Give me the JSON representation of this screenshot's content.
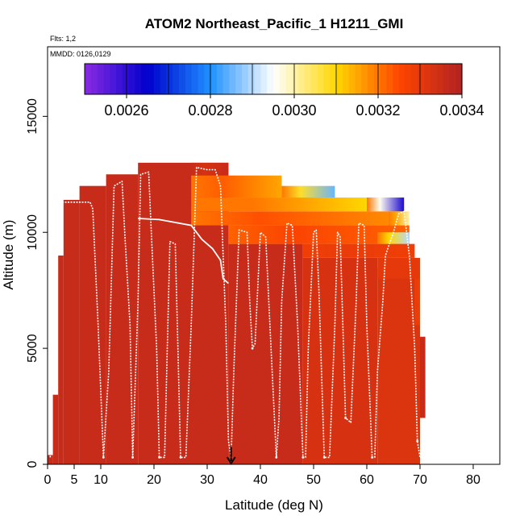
{
  "chart_data": {
    "type": "heatmap",
    "title": "ATOM2 Northeast_Pacific_1 H1211_GMI",
    "annotations": [
      "Flts: 1,2",
      "MMDD: 0126,0129"
    ],
    "xlabel": "Latitude (deg N)",
    "ylabel": "Altitude (m)",
    "xlim": [
      0,
      85
    ],
    "ylim": [
      0,
      18000
    ],
    "x_ticks": [
      0,
      5,
      10,
      20,
      30,
      40,
      50,
      60,
      70,
      80
    ],
    "y_ticks": [
      0,
      5000,
      10000,
      15000
    ],
    "colorbar": {
      "range": [
        0.0025,
        0.0034
      ],
      "tick_values": [
        0.0026,
        0.0028,
        0.003,
        0.0032,
        0.0034
      ],
      "tick_labels": [
        "0.0026",
        "0.0028",
        "0.0030",
        "0.0032",
        "0.0034"
      ],
      "colors": [
        "#8a2be2",
        "#0000cd",
        "#1e90ff",
        "#ffffff",
        "#ffd700",
        "#ff4500",
        "#b22222"
      ]
    },
    "marker_latitude": 34.5,
    "grid": false,
    "legend": "colorbar-top",
    "curtain_segments": [
      {
        "lat": [
          0,
          1
        ],
        "alt": [
          0,
          400
        ],
        "value": 0.00336
      },
      {
        "lat": [
          1,
          2
        ],
        "alt": [
          0,
          3000
        ],
        "value": 0.00336
      },
      {
        "lat": [
          2,
          3
        ],
        "alt": [
          0,
          9000
        ],
        "value": 0.00336
      },
      {
        "lat": [
          3,
          6
        ],
        "alt": [
          0,
          11400
        ],
        "value": 0.00336
      },
      {
        "lat": [
          6,
          11
        ],
        "alt": [
          0,
          12000
        ],
        "value": 0.00336
      },
      {
        "lat": [
          11,
          17
        ],
        "alt": [
          0,
          12500
        ],
        "value": 0.00336
      },
      {
        "lat": [
          17,
          34
        ],
        "alt": [
          0,
          13000
        ],
        "value": 0.00336
      },
      {
        "lat": [
          34,
          48
        ],
        "alt": [
          0,
          9500
        ],
        "value": 0.00336
      },
      {
        "lat": [
          48,
          62
        ],
        "alt": [
          0,
          8900
        ],
        "value": 0.00333
      },
      {
        "lat": [
          62,
          70
        ],
        "alt": [
          0,
          8500
        ],
        "value": 0.00332
      },
      {
        "lat": [
          70,
          71
        ],
        "alt": [
          2000,
          5500
        ],
        "value": 0.00336
      }
    ],
    "upper_layers": [
      {
        "lat": [
          27,
          34
        ],
        "alt": [
          12450,
          13000
        ],
        "value": 0.00336
      },
      {
        "lat": [
          27,
          44
        ],
        "alt": [
          11500,
          12450
        ],
        "value": 0.00315
      },
      {
        "lat": [
          44,
          54
        ],
        "alt": [
          11500,
          12000
        ],
        "value": 0.00285
      },
      {
        "lat": [
          27,
          60
        ],
        "alt": [
          10900,
          11500
        ],
        "value": 0.0031
      },
      {
        "lat": [
          60,
          67
        ],
        "alt": [
          10900,
          11500
        ],
        "value": 0.00262
      },
      {
        "lat": [
          27,
          64
        ],
        "alt": [
          10300,
          10900
        ],
        "value": 0.00318
      },
      {
        "lat": [
          64,
          68
        ],
        "alt": [
          10300,
          10900
        ],
        "value": 0.003
      },
      {
        "lat": [
          34,
          68
        ],
        "alt": [
          9500,
          10300
        ],
        "value": 0.00322
      },
      {
        "lat": [
          62,
          68
        ],
        "alt": [
          9500,
          10000
        ],
        "value": 0.0029
      },
      {
        "lat": [
          48,
          69
        ],
        "alt": [
          8900,
          9500
        ],
        "value": 0.00328
      },
      {
        "lat": [
          62,
          70
        ],
        "alt": [
          8000,
          8900
        ],
        "value": 0.0033
      },
      {
        "lat": [
          69,
          70
        ],
        "alt": [
          6000,
          8000
        ],
        "value": 0.00328
      }
    ],
    "flight_track": [
      [
        0.5,
        300
      ],
      [
        1.0,
        4000
      ],
      [
        1.5,
        8500
      ],
      [
        2.5,
        11300
      ],
      [
        8.0,
        11300
      ],
      [
        8.5,
        11000
      ],
      [
        9.5,
        6000
      ],
      [
        10.5,
        300
      ],
      [
        11.5,
        4000
      ],
      [
        12.5,
        12000
      ],
      [
        14.0,
        12200
      ],
      [
        14.5,
        10000
      ],
      [
        15.5,
        6000
      ],
      [
        16.0,
        300
      ],
      [
        17.0,
        7000
      ],
      [
        17.5,
        12500
      ],
      [
        19.0,
        12600
      ],
      [
        19.5,
        10000
      ],
      [
        20.5,
        5000
      ],
      [
        21.0,
        300
      ],
      [
        22.0,
        300
      ],
      [
        22.5,
        5000
      ],
      [
        23.0,
        9600
      ],
      [
        24.0,
        9500
      ],
      [
        24.5,
        5000
      ],
      [
        25.0,
        300
      ],
      [
        26.0,
        300
      ],
      [
        27.0,
        6000
      ],
      [
        28.0,
        12800
      ],
      [
        30.0,
        12700
      ],
      [
        31.5,
        12700
      ],
      [
        32.5,
        12000
      ],
      [
        33.0,
        9000
      ],
      [
        33.5,
        6000
      ],
      [
        34.0,
        1000
      ],
      [
        34.5,
        300
      ],
      [
        35.0,
        4000
      ],
      [
        36.0,
        10100
      ],
      [
        37.5,
        10000
      ],
      [
        38.0,
        7000
      ],
      [
        38.5,
        5000
      ],
      [
        39.0,
        5200
      ],
      [
        40.0,
        10000
      ],
      [
        41.0,
        9800
      ],
      [
        42.0,
        5000
      ],
      [
        43.0,
        300
      ],
      [
        43.5,
        2000
      ],
      [
        44.0,
        7000
      ],
      [
        45.0,
        10400
      ],
      [
        46.0,
        10300
      ],
      [
        47.0,
        6000
      ],
      [
        48.0,
        300
      ],
      [
        48.5,
        300
      ],
      [
        49.0,
        5000
      ],
      [
        50.0,
        10000
      ],
      [
        50.5,
        10100
      ],
      [
        51.0,
        7500
      ],
      [
        52.0,
        300
      ],
      [
        53.0,
        300
      ],
      [
        54.0,
        6000
      ],
      [
        54.5,
        10000
      ],
      [
        55.0,
        9800
      ],
      [
        55.5,
        6000
      ],
      [
        56.0,
        2000
      ],
      [
        57.0,
        1800
      ],
      [
        58.0,
        7000
      ],
      [
        58.5,
        10400
      ],
      [
        59.5,
        10300
      ],
      [
        60.0,
        6000
      ],
      [
        61.0,
        300
      ],
      [
        61.5,
        300
      ],
      [
        62.0,
        4000
      ],
      [
        63.0,
        7000
      ],
      [
        63.5,
        9000
      ],
      [
        65.0,
        10000
      ],
      [
        66.0,
        10800
      ],
      [
        67.0,
        10900
      ],
      [
        68.0,
        9000
      ],
      [
        69.0,
        5000
      ],
      [
        69.5,
        1000
      ],
      [
        70.0,
        300
      ]
    ],
    "flight_track_dotted": [
      [
        1.5,
        8500
      ],
      [
        10.5,
        300
      ],
      [
        16.0,
        300
      ],
      [
        21.0,
        300
      ],
      [
        25.0,
        300
      ],
      [
        34.5,
        300
      ],
      [
        38.5,
        5000
      ],
      [
        43.0,
        300
      ],
      [
        48.0,
        300
      ],
      [
        52.0,
        300
      ],
      [
        56.0,
        2000
      ],
      [
        61.0,
        300
      ],
      [
        69.5,
        1000
      ]
    ],
    "upper_track": [
      [
        17.0,
        10600
      ],
      [
        21.0,
        10550
      ],
      [
        27.0,
        10300
      ],
      [
        29.0,
        9700
      ],
      [
        31.0,
        9300
      ],
      [
        32.5,
        8800
      ],
      [
        33.0,
        8000
      ],
      [
        34.0,
        7800
      ]
    ]
  }
}
